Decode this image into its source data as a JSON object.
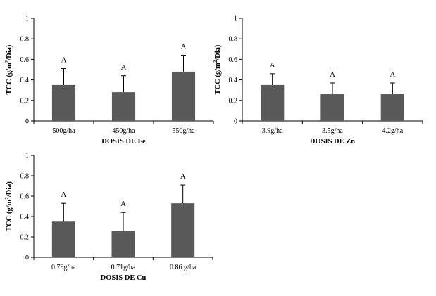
{
  "chart_data": [
    {
      "type": "bar",
      "categories": [
        "500g/ha",
        "450g/ha",
        "550g/ha"
      ],
      "values": [
        0.35,
        0.28,
        0.48
      ],
      "error": [
        0.16,
        0.16,
        0.16
      ],
      "significance": [
        "A",
        "A",
        "A"
      ],
      "xlabel": "DOSIS DE Fe",
      "ylabel": {
        "pre": "TCC (g/m",
        "sup": "2",
        "post": "/Dia)"
      },
      "ylim": [
        0,
        1
      ],
      "yticks": [
        "0",
        "0.2",
        "0.4",
        "0.6",
        "0.8",
        "1"
      ],
      "bar_color": "#595959",
      "grid": false
    },
    {
      "type": "bar",
      "categories": [
        "3.9g/ha",
        "3.5g/ha",
        "4.2g/ha"
      ],
      "values": [
        0.35,
        0.26,
        0.26
      ],
      "error": [
        0.11,
        0.11,
        0.11
      ],
      "significance": [
        "A",
        "A",
        "A"
      ],
      "xlabel": "DOSIS DE Zn",
      "ylabel": {
        "pre": "TCC (g/m",
        "sup": "2",
        "post": "/Dia)"
      },
      "ylim": [
        0,
        1
      ],
      "yticks": [
        "0",
        "0.2",
        "0.4",
        "0.6",
        "0.8",
        "1"
      ],
      "bar_color": "#595959",
      "grid": false
    },
    {
      "type": "bar",
      "categories": [
        "0.79g/ha",
        "0.71g/ha",
        "0.86 g/ha"
      ],
      "values": [
        0.35,
        0.26,
        0.53
      ],
      "error": [
        0.18,
        0.18,
        0.18
      ],
      "significance": [
        "A",
        "A",
        "A"
      ],
      "xlabel": "DOSIS DE Cu",
      "ylabel": {
        "pre": "TCC (g/m",
        "sup": "2",
        "post": "/Dia)"
      },
      "ylim": [
        0,
        1
      ],
      "yticks": [
        "0",
        "0.2",
        "0.4",
        "0.6",
        "0.8",
        "1"
      ],
      "bar_color": "#595959",
      "grid": false
    }
  ]
}
